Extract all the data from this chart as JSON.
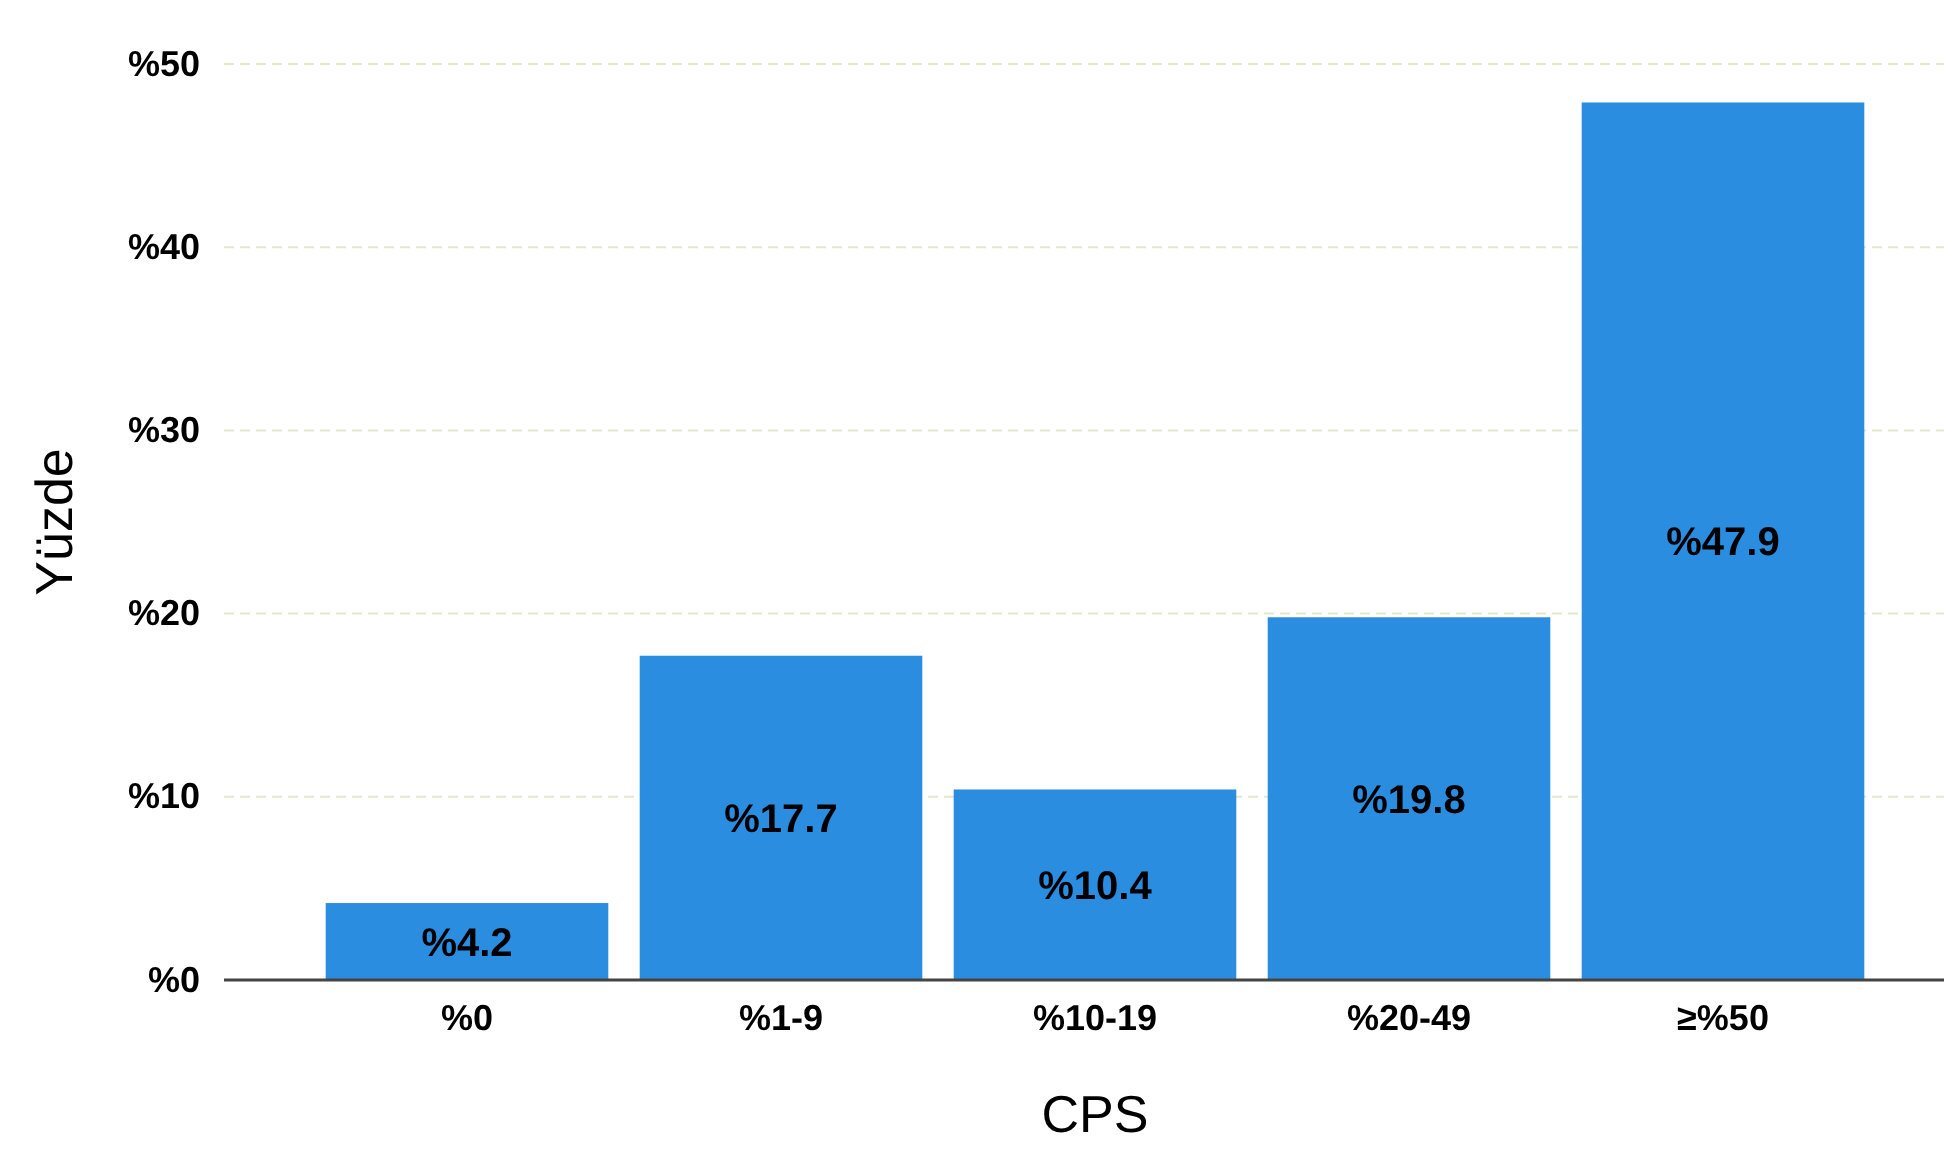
{
  "chart_data": {
    "type": "bar",
    "xlabel": "CPS",
    "ylabel": "Yüzde",
    "categories": [
      "%0",
      "%1-9",
      "%10-19",
      "%20-49",
      "≥%50"
    ],
    "values": [
      4.2,
      17.7,
      10.4,
      19.8,
      47.9
    ],
    "value_labels": [
      "%4.2",
      "%17.7",
      "%10.4",
      "%19.8",
      "%47.9"
    ],
    "color": "#2b8de0",
    "ylim": [
      0,
      50
    ],
    "yticks": [
      {
        "value": 0,
        "label": "%0"
      },
      {
        "value": 10,
        "label": "%10"
      },
      {
        "value": 20,
        "label": "%20"
      },
      {
        "value": 30,
        "label": "%30"
      },
      {
        "value": 40,
        "label": "%40"
      },
      {
        "value": 50,
        "label": "%50"
      }
    ],
    "grid": "y"
  }
}
